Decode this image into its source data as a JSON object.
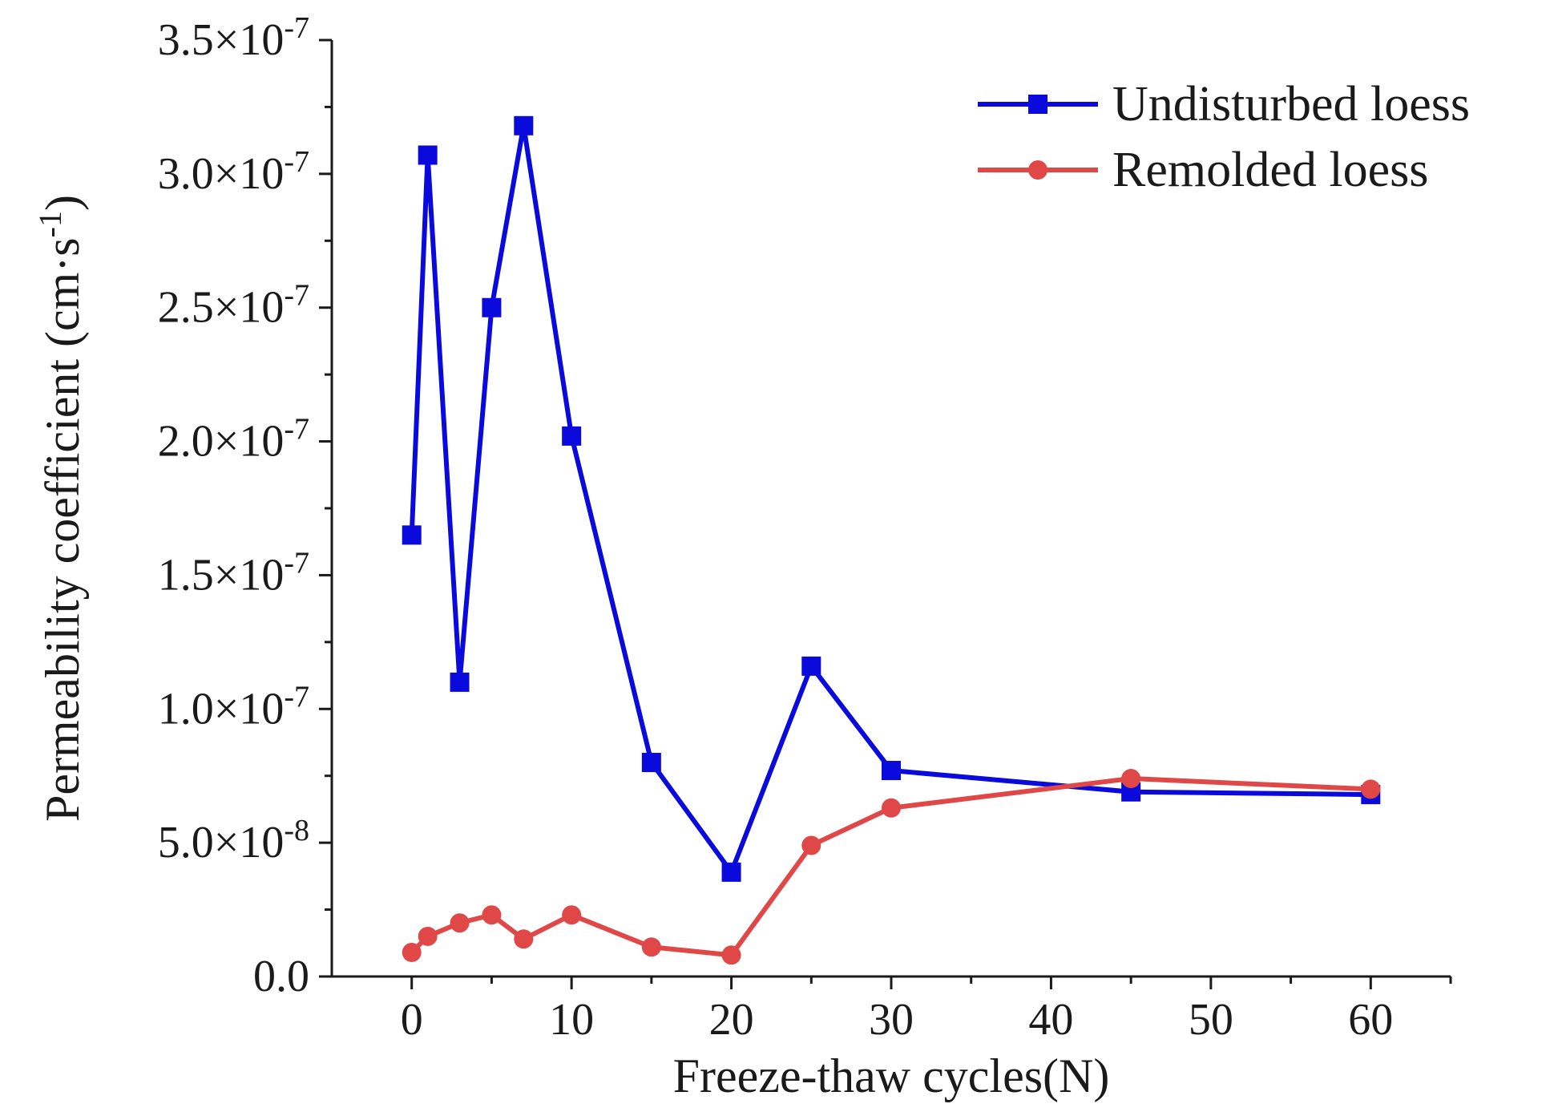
{
  "chart_data": {
    "type": "line",
    "title": "",
    "xlabel": "Freeze-thaw cycles(N)",
    "ylabel": "Permeability coefficient (cm·s-1)",
    "ylabel_main": "Permeability coefficient (cm·s",
    "ylabel_sup": "-1",
    "ylabel_close": ")",
    "xlim": [
      -5,
      65
    ],
    "ylim": [
      0,
      3.5e-07
    ],
    "x_ticks": [
      0,
      10,
      20,
      30,
      40,
      50,
      60
    ],
    "y_ticks": [
      {
        "value": 0,
        "mantissa": "0.0",
        "exponent": ""
      },
      {
        "value": 5e-08,
        "mantissa": "5.0×10",
        "exponent": "-8"
      },
      {
        "value": 1e-07,
        "mantissa": "1.0×10",
        "exponent": "-7"
      },
      {
        "value": 1.5e-07,
        "mantissa": "1.5×10",
        "exponent": "-7"
      },
      {
        "value": 2e-07,
        "mantissa": "2.0×10",
        "exponent": "-7"
      },
      {
        "value": 2.5e-07,
        "mantissa": "2.5×10",
        "exponent": "-7"
      },
      {
        "value": 3e-07,
        "mantissa": "3.0×10",
        "exponent": "-7"
      },
      {
        "value": 3.5e-07,
        "mantissa": "3.5×10",
        "exponent": "-7"
      }
    ],
    "y_minor_ticks": [
      2.5e-08,
      7.5e-08,
      1.25e-07,
      1.75e-07,
      2.25e-07,
      2.75e-07,
      3.25e-07
    ],
    "x_minor_ticks": [
      5,
      15,
      25,
      35,
      45,
      55,
      65
    ],
    "legend_position": "top-right",
    "series": [
      {
        "name": "Undisturbed loess",
        "color": "#0a0adc",
        "marker": "square",
        "x": [
          0,
          1,
          3,
          5,
          7,
          10,
          15,
          20,
          25,
          30,
          45,
          60
        ],
        "y": [
          1.65e-07,
          3.07e-07,
          1.1e-07,
          2.5e-07,
          3.18e-07,
          2.02e-07,
          8e-08,
          3.9e-08,
          1.16e-07,
          7.7e-08,
          6.9e-08,
          6.8e-08
        ]
      },
      {
        "name": "Remolded loess",
        "color": "#e04848",
        "marker": "circle",
        "x": [
          0,
          1,
          3,
          5,
          7,
          10,
          15,
          20,
          25,
          30,
          45,
          60
        ],
        "y": [
          9e-09,
          1.5e-08,
          2e-08,
          2.3e-08,
          1.4e-08,
          2.3e-08,
          1.1e-08,
          8e-09,
          4.9e-08,
          6.3e-08,
          7.4e-08,
          7e-08
        ]
      }
    ]
  }
}
